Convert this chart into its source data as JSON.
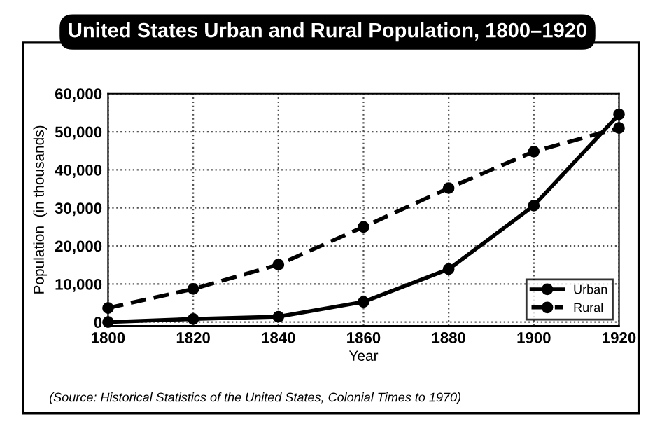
{
  "chart_data": {
    "type": "line",
    "title": "United States Urban and Rural Population, 1800–1920",
    "xlabel": "Year",
    "ylabel": "Population  (in thousands)",
    "x": [
      1800,
      1820,
      1840,
      1860,
      1880,
      1900,
      1920
    ],
    "series": [
      {
        "name": "Urban",
        "color": "#000000",
        "line_style": "solid",
        "values": [
          0,
          800,
          1400,
          5300,
          13900,
          30600,
          54600
        ]
      },
      {
        "name": "Rural",
        "color": "#000000",
        "line_style": "dashed",
        "values": [
          3700,
          8700,
          15100,
          25000,
          35200,
          44800,
          51000
        ]
      }
    ],
    "xlim": [
      1800,
      1920
    ],
    "xticks": [
      1800,
      1820,
      1840,
      1860,
      1880,
      1900,
      1920
    ],
    "ylim": [
      -1000,
      60000
    ],
    "yticks": [
      {
        "value": 0,
        "label": "0"
      },
      {
        "value": 10000,
        "label": "10,000"
      },
      {
        "value": 20000,
        "label": "20,000"
      },
      {
        "value": 30000,
        "label": "30,000"
      },
      {
        "value": 40000,
        "label": "40,000"
      },
      {
        "value": 50000,
        "label": "50,000"
      },
      {
        "value": 60000,
        "label": "60,000"
      }
    ],
    "grid": true,
    "legend": "bottom right",
    "marker": "circle",
    "annotations": [
      "(Source: Historical Statistics of the United States, Colonial Times to 1970)"
    ]
  }
}
